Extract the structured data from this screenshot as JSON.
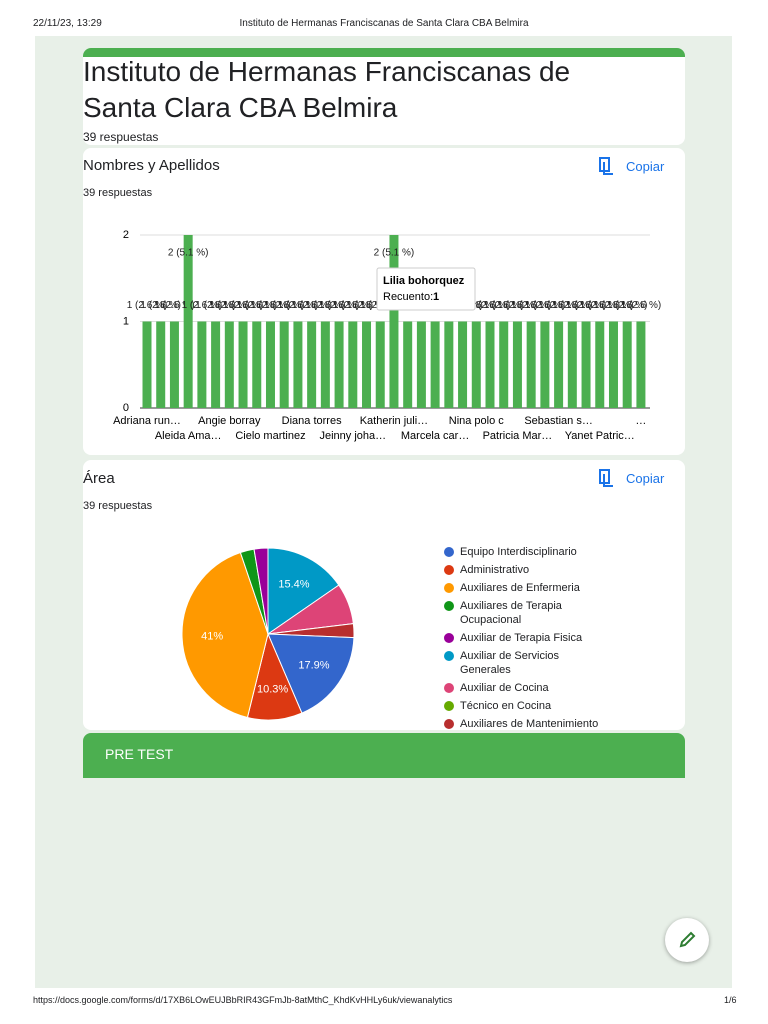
{
  "print_header": {
    "datetime": "22/11/23, 13:29",
    "title": "Instituto de Hermanas Franciscanas de Santa Clara CBA Belmira"
  },
  "print_footer": {
    "url": "https://docs.google.com/forms/d/17XB6LOwEUJBbRIR43GFmJb-8atMthC_KhdKvHHLy6uk/viewanalytics",
    "page": "1/6"
  },
  "form": {
    "title": "Instituto de Hermanas Franciscanas de Santa Clara CBA Belmira",
    "responses": "39 respuestas"
  },
  "questions": [
    {
      "title": "Nombres y Apellidos",
      "copy": "Copiar",
      "responses": "39 respuestas",
      "chart": {
        "type": "bar",
        "color": "#4caf50",
        "grid": true,
        "categories": [
          "Adriana run…",
          null,
          null,
          "Aleida Ama…",
          null,
          null,
          "Angie borray",
          null,
          null,
          "Cielo martinez",
          null,
          null,
          "Diana torres",
          null,
          null,
          "Jeinny joha…",
          null,
          null,
          "Katherin juli…",
          null,
          null,
          "Marcela car…",
          null,
          null,
          "Nina polo c",
          null,
          null,
          "Patricia Mar…",
          null,
          null,
          "Sebastian s…",
          null,
          null,
          "Yanet Patric…",
          null,
          null,
          "…"
        ],
        "values": [
          1,
          1,
          1,
          2,
          1,
          1,
          1,
          1,
          1,
          1,
          1,
          1,
          1,
          1,
          1,
          1,
          1,
          1,
          2,
          1,
          1,
          1,
          1,
          1,
          1,
          1,
          1,
          1,
          1,
          1,
          1,
          1,
          1,
          1,
          1,
          1,
          1
        ],
        "value_labels": [
          "1 (2.6 %)",
          "1 (2.6 %)",
          "1 (2.6 %)",
          "2 (5.1 %)",
          "1 (2.6 %)",
          "1 (2.6 %)",
          "1 (2.6 %)",
          "1 (2.6 %)",
          "1 (2.6 %)",
          "1 (2.6 %)",
          "1 (2.6 %)",
          "1 (2.6 %)",
          "1 (2.6 %)",
          "1 (2.6 %)",
          "1 (2.6 %)",
          "1 (2.6 %)",
          "1 (2.6 %)",
          "1 (2.6 %)",
          "2 (5.1 %)",
          "1 (2.6 %)",
          "1 (2.6 %)",
          "1 (2.6 %)",
          "1 (2.6 %)",
          "1 (2.6 %)",
          "1 (2.6 %)",
          "1 (2.6 %)",
          "1 (2.6 %)",
          "1 (2.6 %)",
          "1 (2.6 %)",
          "1 (2.6 %)",
          "1 (2.6 %)",
          "1 (2.6 %)",
          "1 (2.6 %)",
          "1 (2.6 %)",
          "1 (2.6 %)",
          "1 (2.6 %)",
          "1 (2.6 %)"
        ],
        "ylim": [
          0,
          2
        ],
        "yticks": [
          0,
          1,
          2
        ],
        "tooltip": {
          "name": "Lilia bohorquez",
          "label": "Recuento:",
          "value": 1
        }
      }
    },
    {
      "title": "Área",
      "copy": "Copiar",
      "responses": "39 respuestas",
      "chart": {
        "type": "pie",
        "categories": [
          "Equipo Interdisciplinario",
          "Administrativo",
          "Auxiliares de Enfermeria",
          "Auxiliares de Terapia Ocupacional",
          "Auxiliar de Terapia Fisica",
          "Auxiliar de Servicios Generales",
          "Auxiliar de Cocina",
          "Técnico en Cocina",
          "Auxiliares de Mantenimiento"
        ],
        "values": [
          17.9,
          10.3,
          41,
          2.6,
          2.6,
          15.4,
          7.7,
          0,
          2.6
        ],
        "value_labels": [
          "17.9%",
          "10.3%",
          "41%",
          null,
          null,
          "15.4%",
          null,
          null,
          null
        ],
        "colors": [
          "#3366cc",
          "#dc3912",
          "#ff9900",
          "#109618",
          "#990099",
          "#0099c6",
          "#dd4477",
          "#66aa00",
          "#b82e2e"
        ],
        "legend": "right"
      }
    }
  ],
  "section": {
    "title": "PRE TEST"
  }
}
